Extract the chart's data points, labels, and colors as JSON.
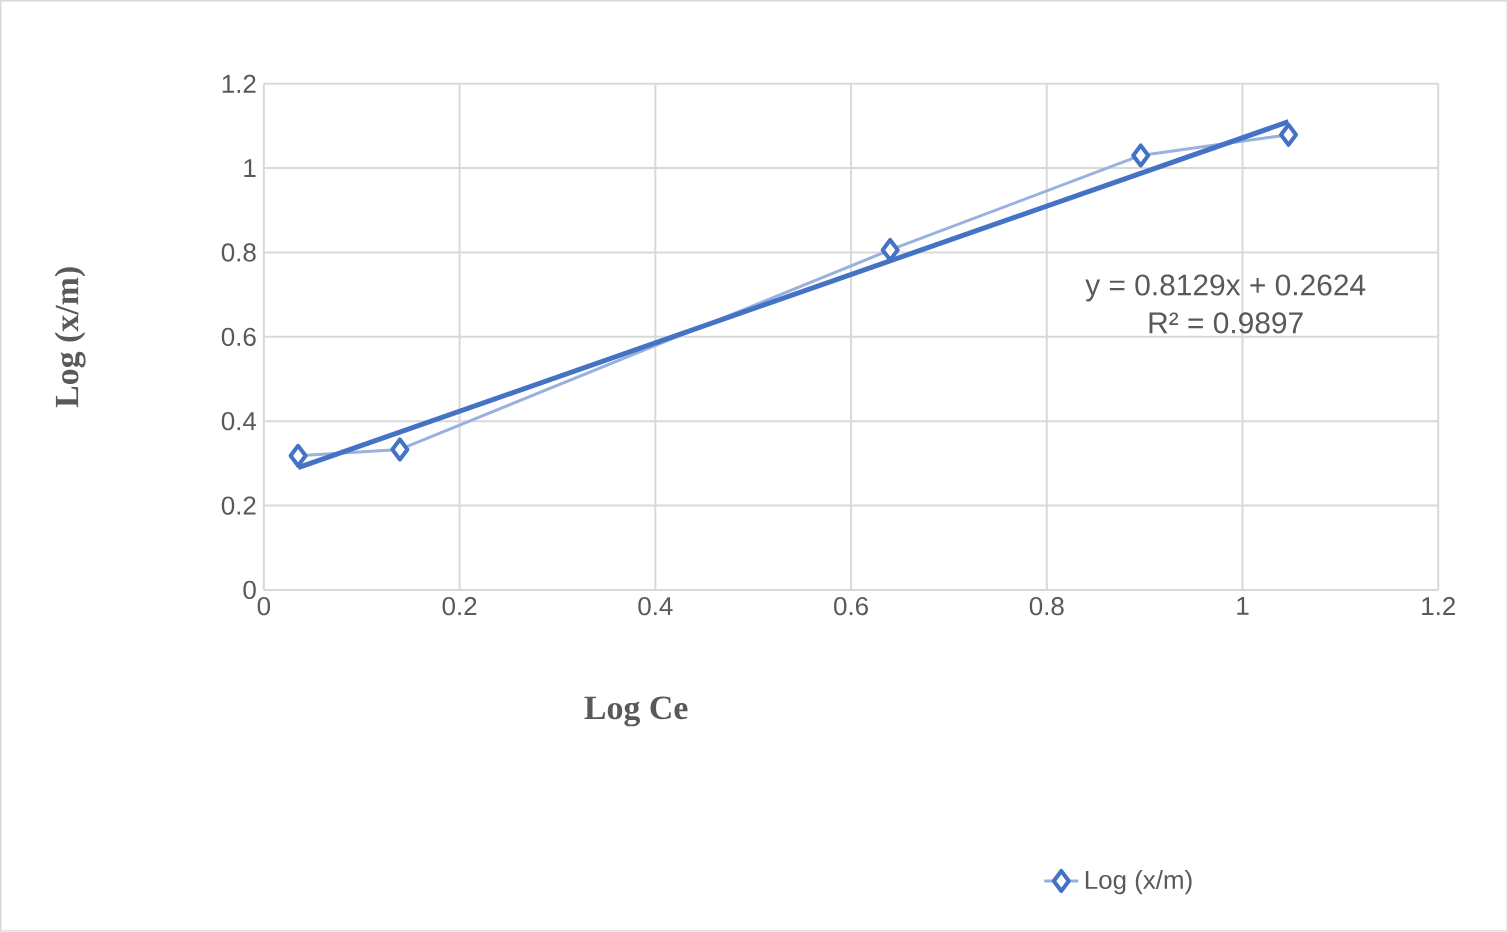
{
  "chart_data": {
    "type": "line",
    "xlabel": "Log Ce",
    "ylabel": "Log (x/m)",
    "xlim": [
      0,
      1.2
    ],
    "xticks": [
      0,
      0.2,
      0.4,
      0.6,
      0.8,
      1,
      1.2
    ],
    "ylim": [
      0,
      1.2
    ],
    "yticks": [
      0,
      0.2,
      0.4,
      0.6,
      0.8,
      1,
      1.2
    ],
    "grid": true,
    "legend": "bottom",
    "series": [
      {
        "name": "Log (x/m)",
        "color": "#4472c4",
        "marker": "diamond",
        "x": [
          0.035,
          0.139,
          0.64,
          0.896,
          1.047
        ],
        "values": [
          0.318,
          0.333,
          0.806,
          1.03,
          1.079
        ]
      },
      {
        "color": "#4472c4",
        "marker": "none",
        "x": [
          0.035,
          1.047
        ],
        "values": [
          0.29,
          1.11
        ]
      }
    ],
    "annotations": [
      "y = 0.8129x + 0.2624",
      "R² = 0.9897"
    ]
  }
}
